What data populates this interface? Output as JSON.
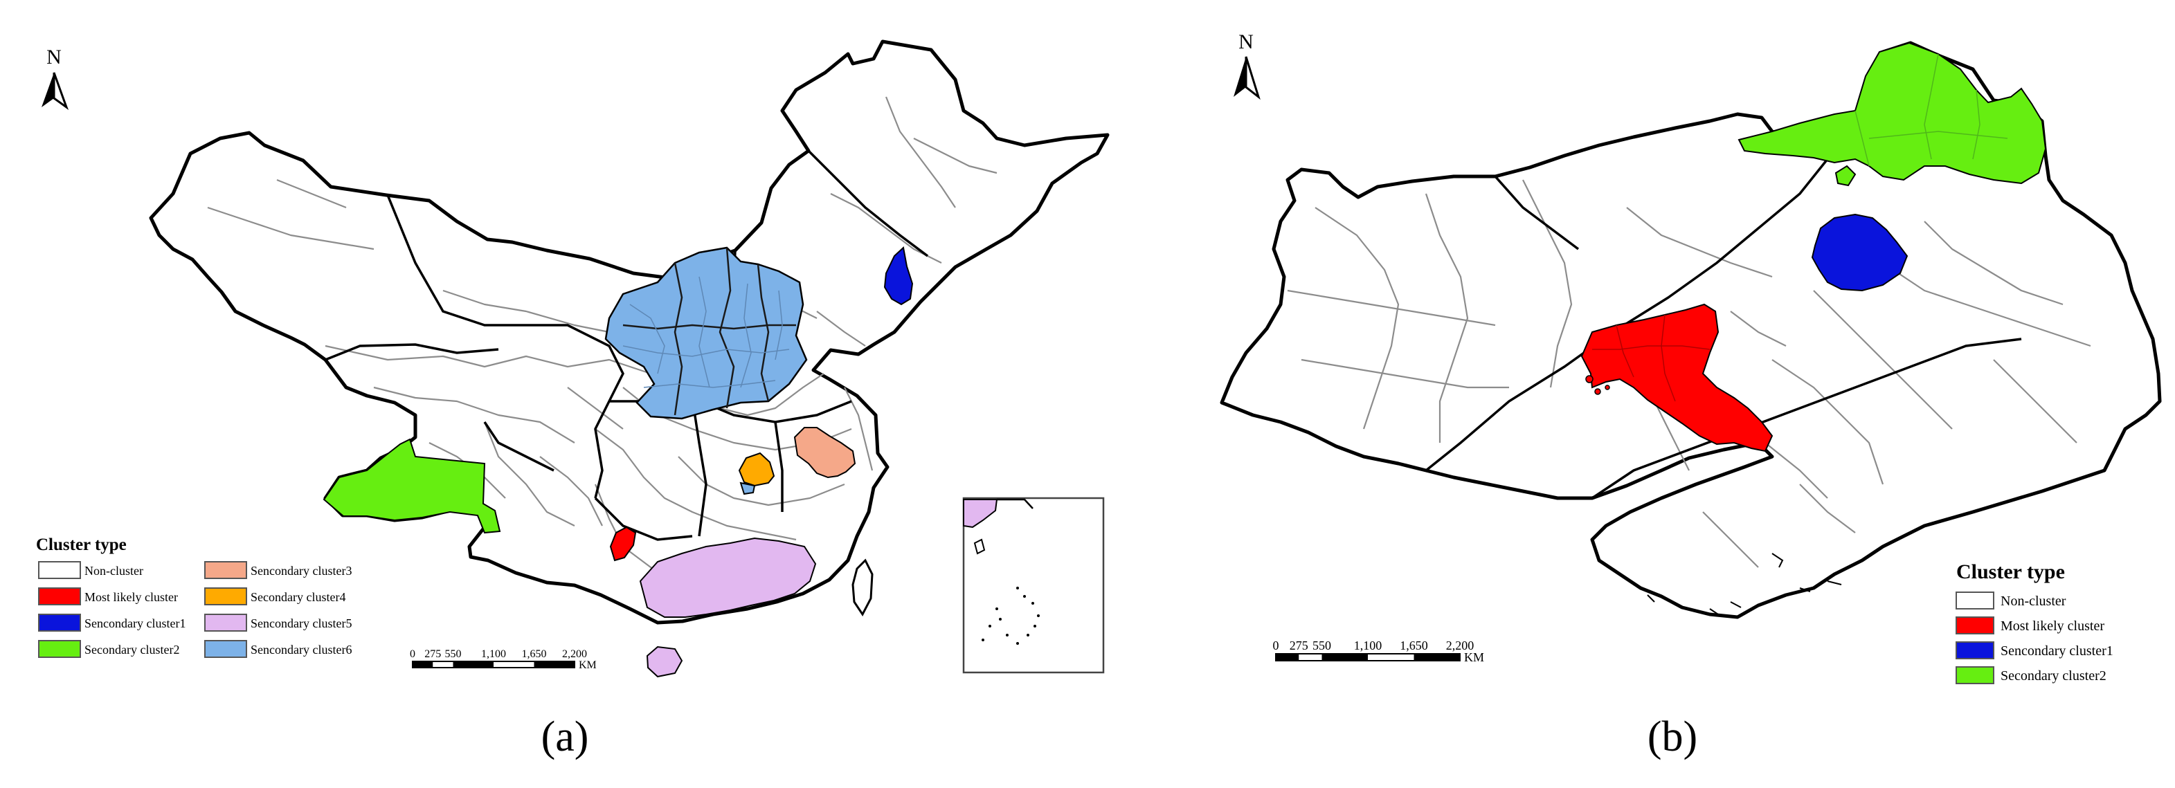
{
  "panels": [
    {
      "id": "a",
      "caption": "(a)",
      "north_label": "N",
      "legend": {
        "title": "Cluster type",
        "items": [
          {
            "label": "Non-cluster",
            "color": "#ffffff"
          },
          {
            "label": "Most likely cluster",
            "color": "#ff0000"
          },
          {
            "label": "Sencondary cluster1",
            "color": "#0a14dc"
          },
          {
            "label": "Secondary cluster2",
            "color": "#66ee11"
          },
          {
            "label": "Sencondary cluster3",
            "color": "#f5a889"
          },
          {
            "label": "Secondary cluster4",
            "color": "#ffaa00"
          },
          {
            "label": "Sencondary cluster5",
            "color": "#e2b8f0"
          },
          {
            "label": "Sencondary cluster6",
            "color": "#7db2e8"
          }
        ]
      },
      "scale_bar": {
        "ticks": [
          "0",
          "275",
          "550",
          "1,100",
          "1,650",
          "2,200"
        ],
        "unit": "KM"
      }
    },
    {
      "id": "b",
      "caption": "(b)",
      "north_label": "N",
      "legend": {
        "title": "Cluster type",
        "items": [
          {
            "label": "Non-cluster",
            "color": "#ffffff"
          },
          {
            "label": "Most likely cluster",
            "color": "#ff0000"
          },
          {
            "label": "Sencondary cluster1",
            "color": "#0a14dc"
          },
          {
            "label": "Secondary cluster2",
            "color": "#66ee11"
          }
        ]
      },
      "scale_bar": {
        "ticks": [
          "0",
          "275",
          "550",
          "1,100",
          "1,650",
          "2,200"
        ],
        "unit": "KM"
      }
    }
  ]
}
